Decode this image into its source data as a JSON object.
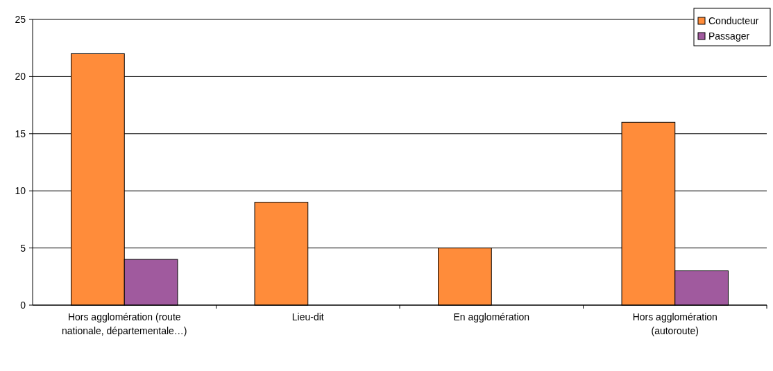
{
  "chart_data": {
    "type": "bar",
    "categories": [
      "Hors agglomération  (route nationale, départementale…)",
      "Lieu-dit",
      "En agglomération",
      "Hors agglomération (autoroute)"
    ],
    "series": [
      {
        "name": "Conducteur",
        "color": "#ff8c3a",
        "values": [
          22,
          9,
          5,
          16
        ]
      },
      {
        "name": "Passager",
        "color": "#a05a9e",
        "values": [
          4,
          0,
          0,
          3
        ]
      }
    ],
    "ylim": [
      0,
      25
    ],
    "yticks": [
      0,
      5,
      10,
      15,
      20,
      25
    ],
    "grid": "y",
    "legend": "top right"
  }
}
